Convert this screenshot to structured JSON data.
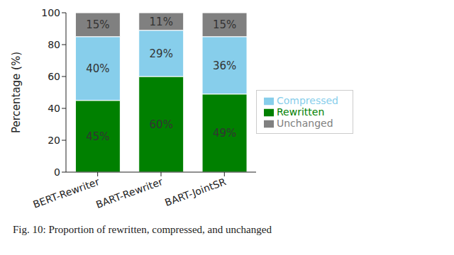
{
  "chart_data": {
    "type": "bar",
    "stacked": true,
    "data_labels": true,
    "legend": "right",
    "caption": "Fig. 10: Proportion of rewritten, compressed, and unchanged",
    "y_label": "Percentage (%)",
    "categories": [
      "BERT-Rewriter",
      "BART-Rewriter",
      "BART-JointSR"
    ],
    "ylim": [
      0,
      100
    ],
    "yticks": [
      0,
      20,
      40,
      60,
      80,
      100
    ],
    "series": [
      {
        "name": "Rewritten",
        "color": "#008000",
        "values": [
          45,
          60,
          49
        ],
        "value_labels": [
          "45%",
          "60%",
          "49%"
        ]
      },
      {
        "name": "Compressed",
        "color": "#87ceeb",
        "values": [
          40,
          29,
          36
        ],
        "value_labels": [
          "40%",
          "29%",
          "36%"
        ]
      },
      {
        "name": "Unchanged",
        "color": "#808080",
        "values": [
          15,
          11,
          15
        ],
        "value_labels": [
          "15%",
          "11%",
          "15%"
        ]
      }
    ]
  }
}
